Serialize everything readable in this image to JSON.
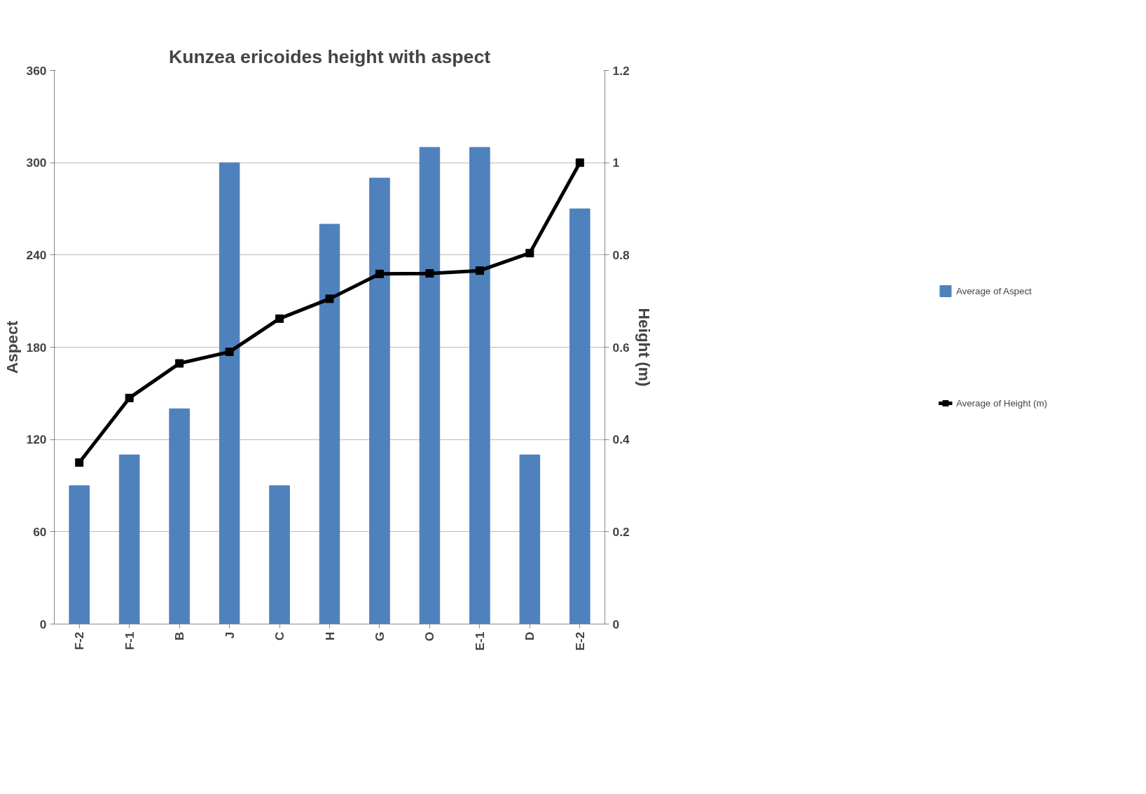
{
  "chart_data": {
    "type": "bar",
    "title": "Kunzea ericoides height with aspect",
    "ylabel": "Aspect",
    "y2label": "Height (m)",
    "categories": [
      "F-2",
      "F-1",
      "B",
      "J",
      "C",
      "H",
      "G",
      "O",
      "E-1",
      "D",
      "E-2"
    ],
    "series": [
      {
        "name": "Average of Aspect",
        "color": "#4f81bd",
        "values": [
          90,
          110,
          140,
          300,
          90,
          260,
          290,
          310,
          310,
          110,
          270
        ]
      },
      {
        "name": "Average of Height (m)",
        "type": "line",
        "axis": "y2",
        "color": "#000000",
        "marker": "square",
        "values": [
          0.35,
          0.49,
          0.565,
          0.59,
          0.662,
          0.705,
          0.759,
          0.76,
          0.766,
          0.804,
          1.0
        ]
      }
    ],
    "ylim": [
      0,
      360
    ],
    "yticks": [
      0,
      60,
      120,
      180,
      240,
      300,
      360
    ],
    "y2lim": [
      0,
      1.2
    ],
    "y2ticks": [
      0,
      0.2,
      0.4,
      0.6,
      0.8,
      1,
      1.2
    ],
    "grid": "y",
    "legend": "right"
  }
}
